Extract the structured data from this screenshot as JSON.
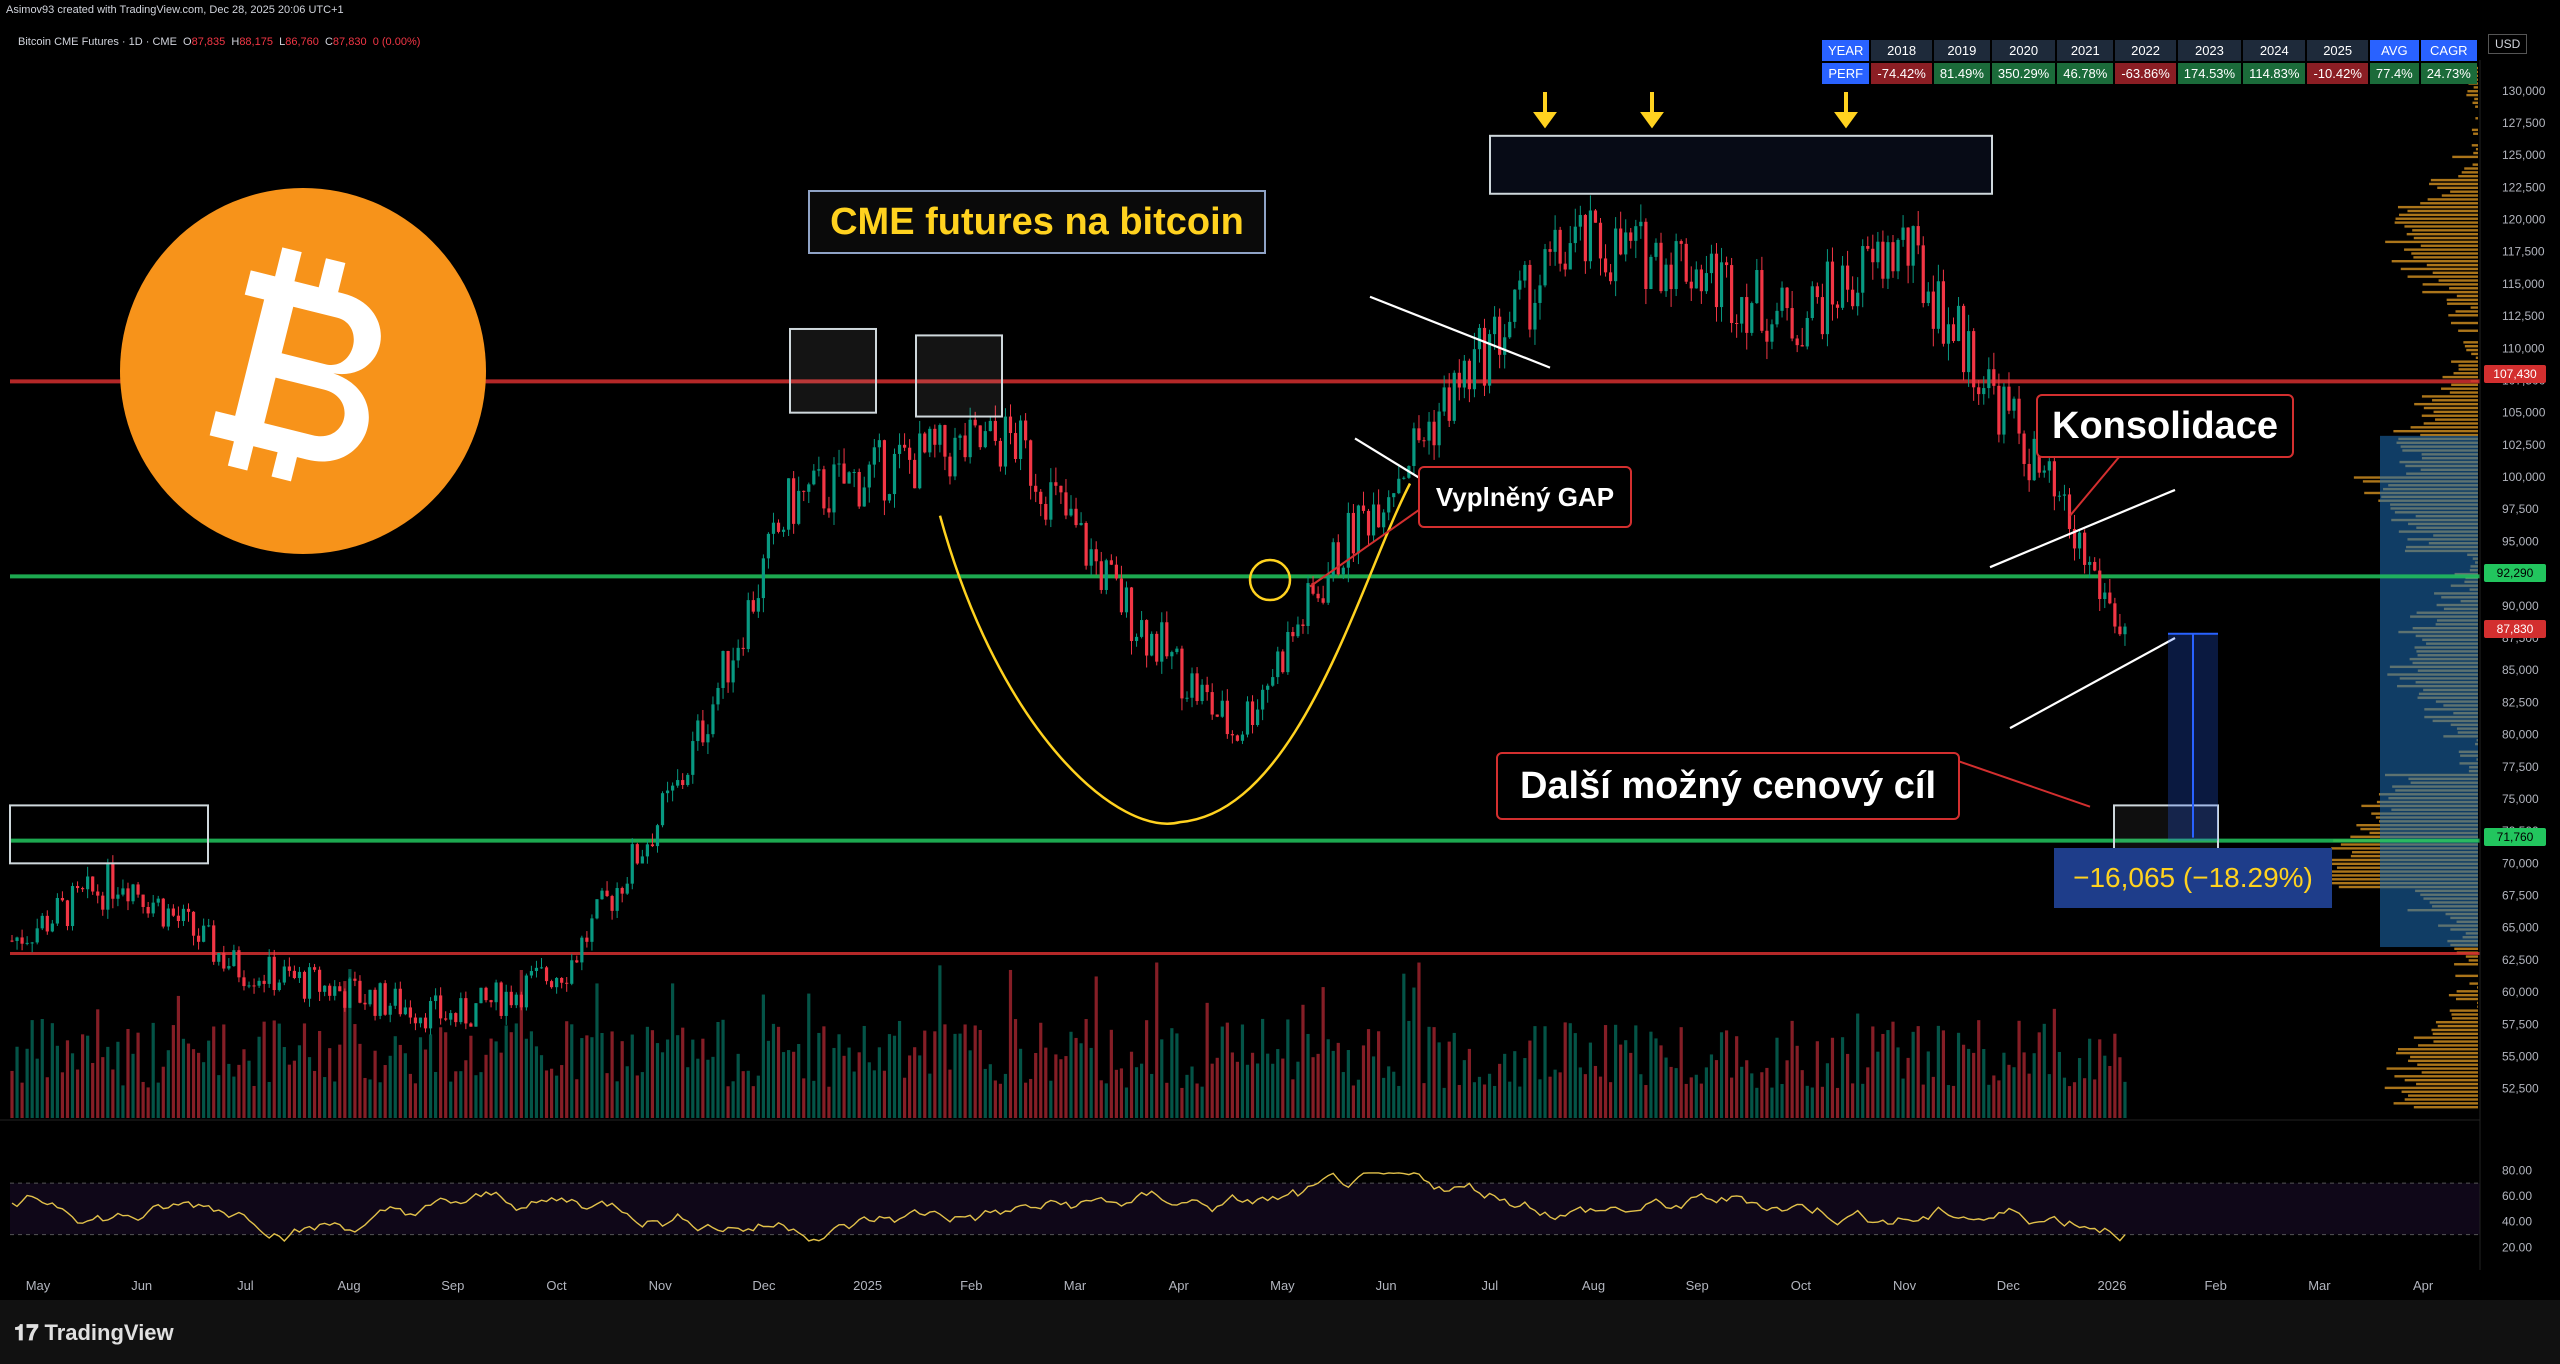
{
  "header": {
    "credit": "Asimov93 created with TradingView.com, Dec 28, 2025 20:06 UTC+1",
    "symbol": "Bitcoin CME Futures · 1D · CME",
    "ohlc": {
      "o": "87,835",
      "h": "88,175",
      "l": "86,760",
      "c": "87,830",
      "chg": "0 (0.00%)"
    }
  },
  "perf_table": {
    "row1_label": "YEAR",
    "row2_label": "PERF",
    "years": [
      "2018",
      "2019",
      "2020",
      "2021",
      "2022",
      "2023",
      "2024",
      "2025"
    ],
    "values": [
      "-74.42%",
      "81.49%",
      "350.29%",
      "46.78%",
      "-63.86%",
      "174.53%",
      "114.83%",
      "-10.42%"
    ],
    "avg_label": "AVG",
    "avg_value": "77.4%",
    "cagr_label": "CAGR",
    "cagr_value": "24.73%"
  },
  "currency": "USD",
  "annotations": {
    "title": "CME futures na bitcoin",
    "gap": "Vyplněný GAP",
    "consolidation": "Konsolidace",
    "target": "Další možný cenový cíl",
    "measure": "−16,065 (−18.29%)"
  },
  "price_tags": {
    "resistance": "107,430",
    "support_mid": "92,290",
    "last": "87,830",
    "support_low": "71,760"
  },
  "brand": "TradingView",
  "colors": {
    "up": "#089981",
    "down": "#f23645",
    "accent_yellow": "#ffd21f",
    "btc_orange": "#f7931a",
    "volume_profile_orange": "#c98a1e",
    "volume_profile_blue": "#1e6fb8"
  },
  "chart_data": {
    "type": "line",
    "title": "",
    "series": [
      {
        "x": [
          "May",
          "Jun",
          "Jul",
          "Aug",
          "Sep",
          "Oct",
          "Nov",
          "Dec",
          "2025",
          "Feb",
          "Mar",
          "Apr",
          "May",
          "Jun",
          "Jul",
          "Aug",
          "Sep",
          "Oct",
          "Nov",
          "Dec"
        ],
        "values": [
          64000,
          69000,
          62000,
          60000,
          58000,
          62000,
          76000,
          98000,
          101000,
          103000,
          90000,
          80000,
          95000,
          107000,
          118000,
          117000,
          112000,
          118000,
          104000,
          87830
        ]
      }
    ],
    "price_axis_ticks": [
      "130,000",
      "127,500",
      "125,000",
      "122,500",
      "120,000",
      "117,500",
      "115,000",
      "112,500",
      "110,000",
      "107,500",
      "105,000",
      "102,500",
      "100,000",
      "97,500",
      "95,000",
      "92,500",
      "90,000",
      "87,500",
      "85,000",
      "82,500",
      "80,000",
      "77,500",
      "75,000",
      "72,500",
      "70,000",
      "67,500",
      "65,000",
      "62,500",
      "60,000",
      "57,500",
      "55,000",
      "52,500"
    ],
    "ylim": [
      51000,
      132000
    ],
    "time_axis_ticks": [
      "May",
      "Jun",
      "Jul",
      "Aug",
      "Sep",
      "Oct",
      "Nov",
      "Dec",
      "2025",
      "Feb",
      "Mar",
      "Apr",
      "May",
      "Jun",
      "Jul",
      "Aug",
      "Sep",
      "Oct",
      "Nov",
      "Dec",
      "2026",
      "Feb",
      "Mar",
      "Apr"
    ],
    "rsi_ticks": [
      "80.00",
      "60.00",
      "40.00",
      "20.00"
    ],
    "rsi_ylim": [
      18,
      88
    ],
    "horizontal_levels": [
      107430,
      92290,
      71760,
      63000
    ]
  }
}
